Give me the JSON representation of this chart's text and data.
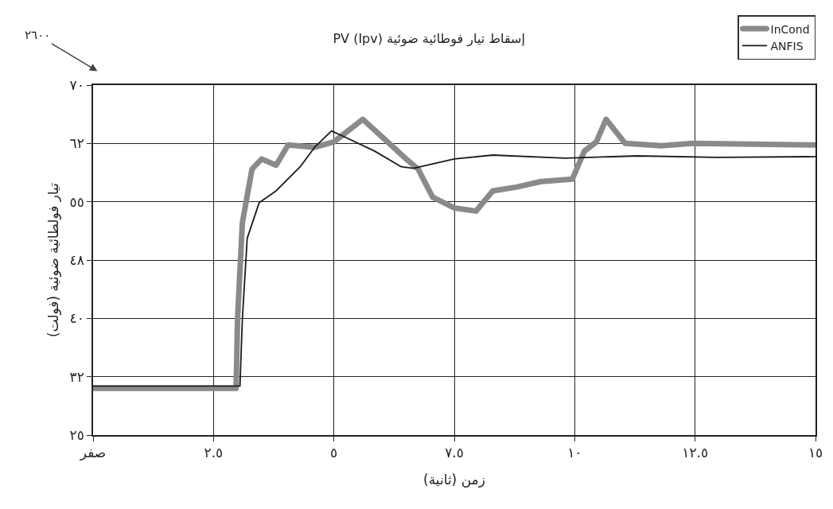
{
  "chart_data": {
    "type": "line",
    "title": "إسقاط تيار فوطائية ضوئية PV (Ipv)",
    "xlabel": "زمن (ثانية)",
    "ylabel": "تيار فولطائية ضوئية (فولت)",
    "annotations": [
      "٢٦٠٠"
    ],
    "xlim": [
      0,
      15
    ],
    "xticks": [
      {
        "value": 0,
        "label": "صفر"
      },
      {
        "value": 2.5,
        "label": "٢.٥"
      },
      {
        "value": 5,
        "label": "٥"
      },
      {
        "value": 7.5,
        "label": "٧.٥"
      },
      {
        "value": 10,
        "label": "١٠"
      },
      {
        "value": 12.5,
        "label": "١٢.٥"
      },
      {
        "value": 15,
        "label": "١٥"
      }
    ],
    "ylim": [
      25,
      70
    ],
    "yticks": [
      {
        "value": 25,
        "label": "٢٥"
      },
      {
        "value": 32.5,
        "label": "٣٢"
      },
      {
        "value": 40,
        "label": "٤٠"
      },
      {
        "value": 47.5,
        "label": "٤٨"
      },
      {
        "value": 55,
        "label": "٥٥"
      },
      {
        "value": 62.5,
        "label": "٦٢"
      },
      {
        "value": 70,
        "label": "٧٠"
      }
    ],
    "grid": true,
    "legend": "top right",
    "marker": "none",
    "line_style": "solid",
    "series": [
      {
        "name": "InCond",
        "color": "#8a8a8a",
        "x": [
          0,
          2.97,
          3.0,
          3.1,
          3.3,
          3.5,
          3.8,
          4.05,
          4.6,
          5.0,
          5.6,
          6.15,
          6.5,
          6.75,
          7.05,
          7.5,
          7.95,
          8.3,
          8.8,
          9.3,
          9.95,
          10.2,
          10.45,
          10.65,
          11.05,
          11.8,
          12.45,
          15
        ],
        "values": [
          31.0,
          31.0,
          40,
          52.3,
          59.2,
          60.5,
          59.7,
          62.3,
          62.0,
          62.7,
          65.6,
          62.5,
          60.5,
          59.2,
          55.6,
          54.2,
          53.8,
          56.4,
          56.9,
          57.6,
          57.9,
          61.5,
          62.7,
          65.6,
          62.5,
          62.2,
          62.5,
          62.3
        ]
      },
      {
        "name": "ANFIS",
        "color": "#1a1a1a",
        "x": [
          0,
          3.05,
          3.1,
          3.2,
          3.45,
          3.8,
          4.3,
          4.6,
          4.95,
          5.2,
          5.85,
          6.4,
          6.65,
          7.5,
          8.3,
          9.8,
          11.3,
          12.95,
          15
        ],
        "values": [
          31.3,
          31.3,
          40,
          50.3,
          54.9,
          56.4,
          59.5,
          62.0,
          64.1,
          63.4,
          61.5,
          59.5,
          59.3,
          60.5,
          61.0,
          60.6,
          60.9,
          60.7,
          60.8
        ]
      }
    ]
  }
}
